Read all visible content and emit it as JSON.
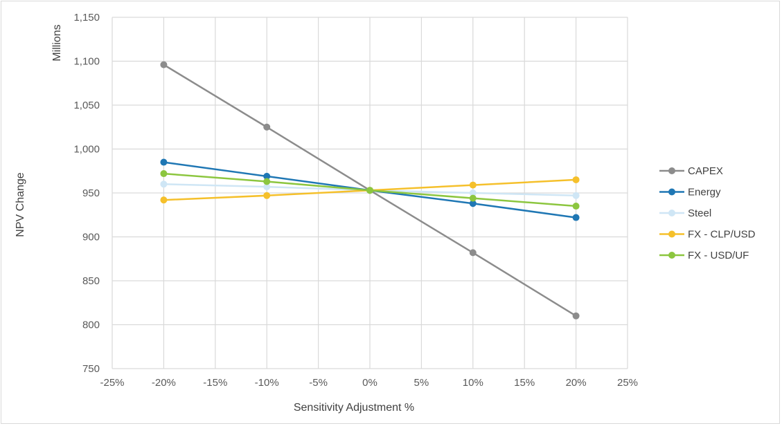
{
  "chart_data": {
    "type": "line",
    "xlabel": "Sensitivity Adjustment  %",
    "ylabel": "NPV Change",
    "yunit_label": "Millions",
    "xlim": [
      -25,
      25
    ],
    "ylim": [
      750,
      1150
    ],
    "x_ticks": [
      -25,
      -20,
      -15,
      -10,
      -5,
      0,
      5,
      10,
      15,
      20,
      25
    ],
    "x_tick_labels": [
      "-25%",
      "-20%",
      "-15%",
      "-10%",
      "-5%",
      "0%",
      "5%",
      "10%",
      "15%",
      "20%",
      "25%"
    ],
    "y_ticks": [
      750,
      800,
      850,
      900,
      950,
      1000,
      1050,
      1100,
      1150
    ],
    "y_tick_labels": [
      "750",
      "800",
      "850",
      "900",
      "950",
      "1,000",
      "1,050",
      "1,100",
      "1,150"
    ],
    "grid": true,
    "legend_position": "right",
    "series": [
      {
        "name": "CAPEX",
        "color": "#8c8c8c",
        "x": [
          -20,
          -10,
          0,
          10,
          20
        ],
        "values": [
          1096,
          1025,
          953,
          882,
          810
        ]
      },
      {
        "name": "Energy",
        "color": "#1f77b4",
        "x": [
          -20,
          -10,
          0,
          10,
          20
        ],
        "values": [
          985,
          969,
          953,
          938,
          922
        ]
      },
      {
        "name": "Steel",
        "color": "#cfe6f5",
        "x": [
          -20,
          -10,
          0,
          10,
          20
        ],
        "values": [
          960,
          957,
          953,
          950,
          947
        ]
      },
      {
        "name": "FX - CLP/USD",
        "color": "#f5c02b",
        "x": [
          -20,
          -10,
          0,
          10,
          20
        ],
        "values": [
          942,
          947,
          953,
          959,
          965
        ]
      },
      {
        "name": "FX - USD/UF",
        "color": "#8cc63f",
        "x": [
          -20,
          -10,
          0,
          10,
          20
        ],
        "values": [
          972,
          963,
          953,
          944,
          935
        ]
      }
    ]
  }
}
